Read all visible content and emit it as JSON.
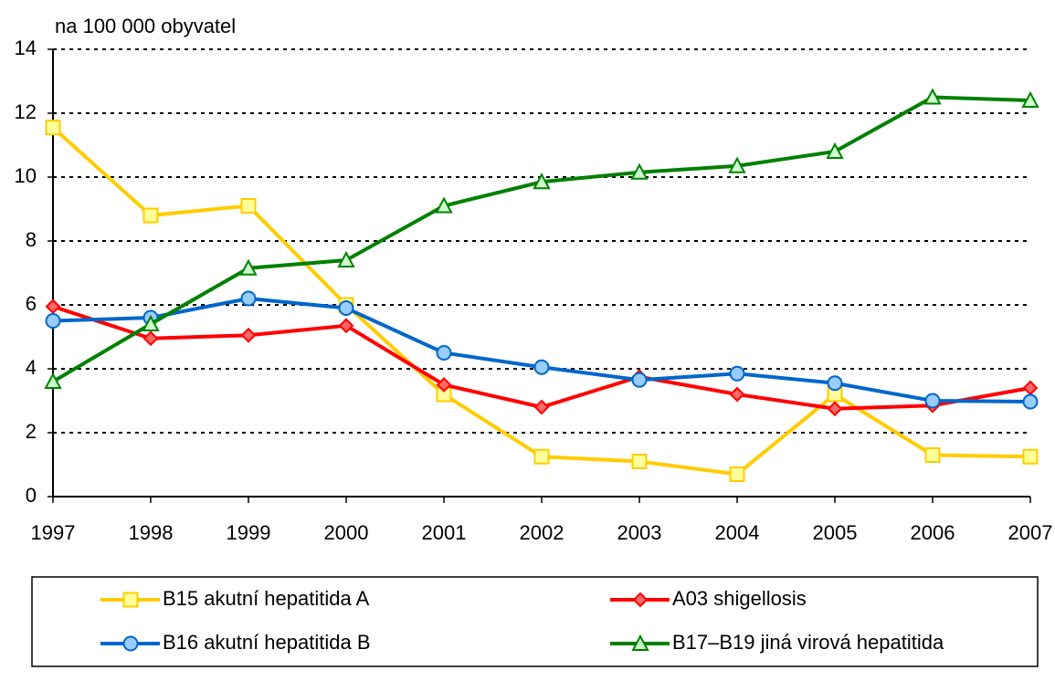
{
  "chart_data": {
    "type": "line",
    "subtitle": "na 100 000 obyvatel",
    "categories": [
      "1997",
      "1998",
      "1999",
      "2000",
      "2001",
      "2002",
      "2003",
      "2004",
      "2005",
      "2006",
      "2007"
    ],
    "series": [
      {
        "name": "B15 akutní hepatitida A",
        "color": "#ffcc00",
        "marker": "square",
        "marker_fill": "#ffff99",
        "values": [
          11.55,
          8.8,
          9.1,
          6.0,
          3.2,
          1.25,
          1.1,
          0.7,
          3.2,
          1.3,
          1.25
        ]
      },
      {
        "name": "A03 shigellosis",
        "color": "#ff0000",
        "marker": "diamond",
        "marker_fill": "#ff6666",
        "values": [
          5.95,
          4.95,
          5.05,
          5.35,
          3.5,
          2.8,
          3.75,
          3.2,
          2.75,
          2.85,
          3.4
        ]
      },
      {
        "name": "B16 akutní hepatitida B",
        "color": "#0066cc",
        "marker": "circle",
        "marker_fill": "#99ccff",
        "values": [
          5.5,
          5.6,
          6.2,
          5.9,
          4.5,
          4.05,
          3.65,
          3.85,
          3.55,
          3.0,
          2.97
        ]
      },
      {
        "name": "B17–B19 jiná virová hepatitida",
        "color": "#008000",
        "marker": "triangle",
        "marker_fill": "#ccffcc",
        "values": [
          3.6,
          5.4,
          7.15,
          7.4,
          9.1,
          9.85,
          10.15,
          10.35,
          10.8,
          12.5,
          12.4
        ]
      }
    ],
    "ylim": [
      0,
      14
    ],
    "yticks": [
      0,
      2,
      4,
      6,
      8,
      10,
      12,
      14
    ],
    "grid": true
  }
}
